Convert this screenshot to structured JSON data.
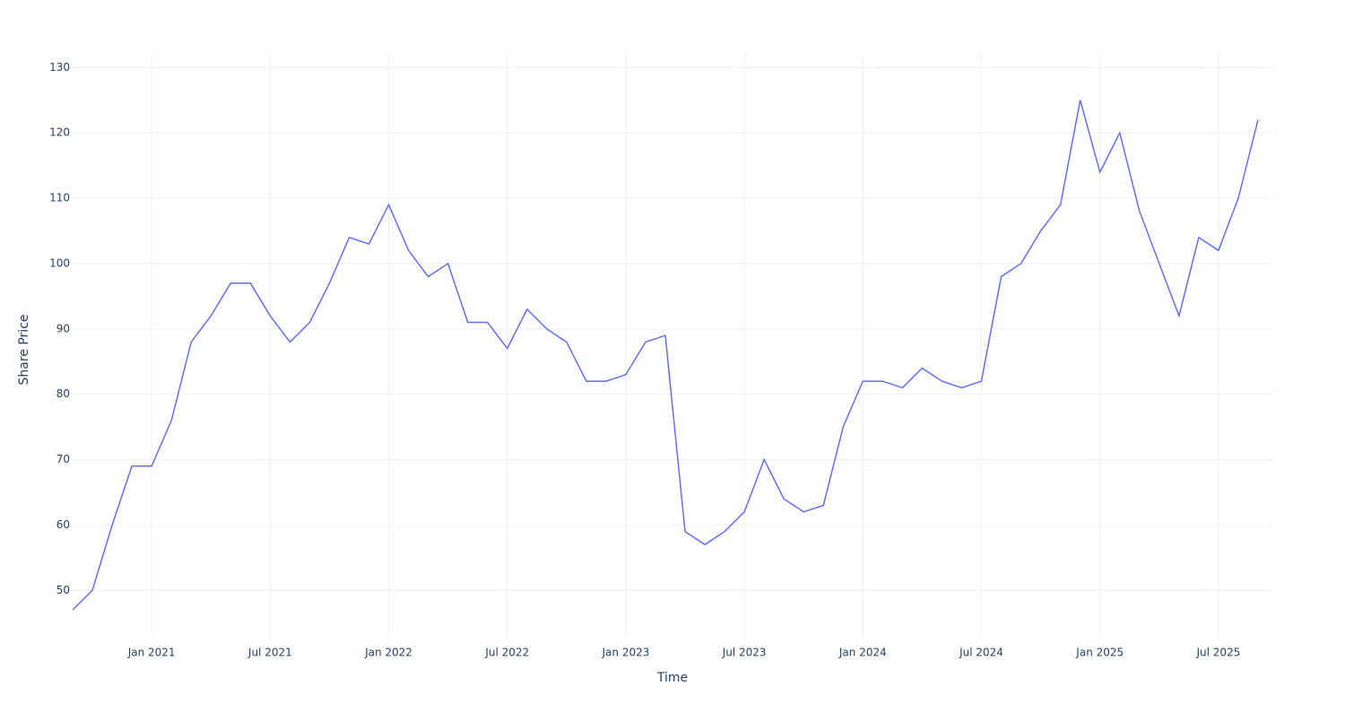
{
  "chart_data": {
    "type": "line",
    "x_label": "Time",
    "y_label": "Share Price",
    "x": [
      "2020-09",
      "2020-10",
      "2020-11",
      "2020-12",
      "2021-01",
      "2021-02",
      "2021-03",
      "2021-04",
      "2021-05",
      "2021-06",
      "2021-07",
      "2021-08",
      "2021-09",
      "2021-10",
      "2021-11",
      "2021-12",
      "2022-01",
      "2022-02",
      "2022-03",
      "2022-04",
      "2022-05",
      "2022-06",
      "2022-07",
      "2022-08",
      "2022-09",
      "2022-10",
      "2022-11",
      "2022-12",
      "2023-01",
      "2023-02",
      "2023-03",
      "2023-04",
      "2023-05",
      "2023-06",
      "2023-07",
      "2023-08",
      "2023-09",
      "2023-10",
      "2023-11",
      "2023-12",
      "2024-01",
      "2024-02",
      "2024-03",
      "2024-04",
      "2024-05",
      "2024-06",
      "2024-07",
      "2024-08",
      "2024-09",
      "2024-10",
      "2024-11",
      "2024-12",
      "2025-01",
      "2025-02",
      "2025-03",
      "2025-04",
      "2025-05",
      "2025-06",
      "2025-07",
      "2025-08",
      "2025-09"
    ],
    "values": [
      47,
      50,
      60,
      69,
      69,
      76,
      88,
      92,
      97,
      97,
      92,
      88,
      91,
      97,
      104,
      103,
      109,
      102,
      98,
      100,
      91,
      91,
      87,
      93,
      90,
      88,
      82,
      82,
      83,
      88,
      89,
      59,
      57,
      59,
      62,
      70,
      64,
      62,
      63,
      75,
      82,
      82,
      81,
      84,
      82,
      81,
      82,
      98,
      100,
      105,
      109,
      125,
      114,
      120,
      108,
      100,
      92,
      104,
      102,
      110,
      122
    ],
    "color": "#636efa",
    "xlim": [
      "2020-09",
      "2025-09"
    ],
    "xticks": [
      {
        "value": "2021-01",
        "label": "Jan 2021"
      },
      {
        "value": "2021-07",
        "label": "Jul 2021"
      },
      {
        "value": "2022-01",
        "label": "Jan 2022"
      },
      {
        "value": "2022-07",
        "label": "Jul 2022"
      },
      {
        "value": "2023-01",
        "label": "Jan 2023"
      },
      {
        "value": "2023-07",
        "label": "Jul 2023"
      },
      {
        "value": "2024-01",
        "label": "Jan 2024"
      },
      {
        "value": "2024-07",
        "label": "Jul 2024"
      },
      {
        "value": "2025-01",
        "label": "Jan 2025"
      },
      {
        "value": "2025-07",
        "label": "Jul 2025"
      }
    ],
    "ylim": [
      42.9,
      132.1
    ],
    "yticks": [
      50,
      60,
      70,
      80,
      90,
      100,
      110,
      120,
      130
    ],
    "grid": true
  }
}
